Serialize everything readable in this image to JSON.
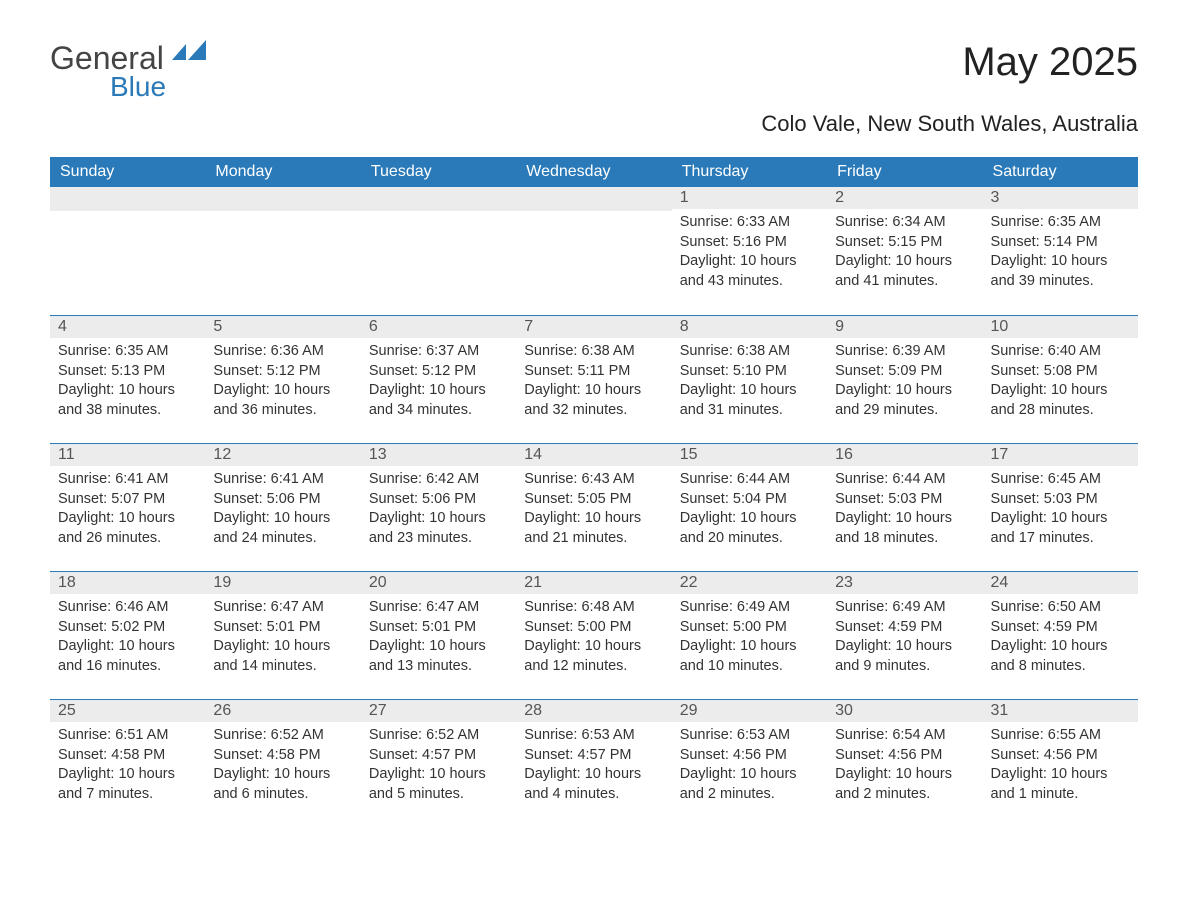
{
  "brand": {
    "text1": "General",
    "text2": "Blue",
    "shape_color": "#2a7ab9"
  },
  "title": "May 2025",
  "location": "Colo Vale, New South Wales, Australia",
  "colors": {
    "header_bg": "#2a7ab9",
    "header_text": "#ffffff",
    "daynum_bg": "#ececec",
    "daynum_border": "#2a7ab9",
    "body_text": "#333333"
  },
  "weekdays": [
    "Sunday",
    "Monday",
    "Tuesday",
    "Wednesday",
    "Thursday",
    "Friday",
    "Saturday"
  ],
  "weeks": [
    [
      null,
      null,
      null,
      null,
      {
        "num": "1",
        "sunrise": "Sunrise: 6:33 AM",
        "sunset": "Sunset: 5:16 PM",
        "daylight": "Daylight: 10 hours and 43 minutes."
      },
      {
        "num": "2",
        "sunrise": "Sunrise: 6:34 AM",
        "sunset": "Sunset: 5:15 PM",
        "daylight": "Daylight: 10 hours and 41 minutes."
      },
      {
        "num": "3",
        "sunrise": "Sunrise: 6:35 AM",
        "sunset": "Sunset: 5:14 PM",
        "daylight": "Daylight: 10 hours and 39 minutes."
      }
    ],
    [
      {
        "num": "4",
        "sunrise": "Sunrise: 6:35 AM",
        "sunset": "Sunset: 5:13 PM",
        "daylight": "Daylight: 10 hours and 38 minutes."
      },
      {
        "num": "5",
        "sunrise": "Sunrise: 6:36 AM",
        "sunset": "Sunset: 5:12 PM",
        "daylight": "Daylight: 10 hours and 36 minutes."
      },
      {
        "num": "6",
        "sunrise": "Sunrise: 6:37 AM",
        "sunset": "Sunset: 5:12 PM",
        "daylight": "Daylight: 10 hours and 34 minutes."
      },
      {
        "num": "7",
        "sunrise": "Sunrise: 6:38 AM",
        "sunset": "Sunset: 5:11 PM",
        "daylight": "Daylight: 10 hours and 32 minutes."
      },
      {
        "num": "8",
        "sunrise": "Sunrise: 6:38 AM",
        "sunset": "Sunset: 5:10 PM",
        "daylight": "Daylight: 10 hours and 31 minutes."
      },
      {
        "num": "9",
        "sunrise": "Sunrise: 6:39 AM",
        "sunset": "Sunset: 5:09 PM",
        "daylight": "Daylight: 10 hours and 29 minutes."
      },
      {
        "num": "10",
        "sunrise": "Sunrise: 6:40 AM",
        "sunset": "Sunset: 5:08 PM",
        "daylight": "Daylight: 10 hours and 28 minutes."
      }
    ],
    [
      {
        "num": "11",
        "sunrise": "Sunrise: 6:41 AM",
        "sunset": "Sunset: 5:07 PM",
        "daylight": "Daylight: 10 hours and 26 minutes."
      },
      {
        "num": "12",
        "sunrise": "Sunrise: 6:41 AM",
        "sunset": "Sunset: 5:06 PM",
        "daylight": "Daylight: 10 hours and 24 minutes."
      },
      {
        "num": "13",
        "sunrise": "Sunrise: 6:42 AM",
        "sunset": "Sunset: 5:06 PM",
        "daylight": "Daylight: 10 hours and 23 minutes."
      },
      {
        "num": "14",
        "sunrise": "Sunrise: 6:43 AM",
        "sunset": "Sunset: 5:05 PM",
        "daylight": "Daylight: 10 hours and 21 minutes."
      },
      {
        "num": "15",
        "sunrise": "Sunrise: 6:44 AM",
        "sunset": "Sunset: 5:04 PM",
        "daylight": "Daylight: 10 hours and 20 minutes."
      },
      {
        "num": "16",
        "sunrise": "Sunrise: 6:44 AM",
        "sunset": "Sunset: 5:03 PM",
        "daylight": "Daylight: 10 hours and 18 minutes."
      },
      {
        "num": "17",
        "sunrise": "Sunrise: 6:45 AM",
        "sunset": "Sunset: 5:03 PM",
        "daylight": "Daylight: 10 hours and 17 minutes."
      }
    ],
    [
      {
        "num": "18",
        "sunrise": "Sunrise: 6:46 AM",
        "sunset": "Sunset: 5:02 PM",
        "daylight": "Daylight: 10 hours and 16 minutes."
      },
      {
        "num": "19",
        "sunrise": "Sunrise: 6:47 AM",
        "sunset": "Sunset: 5:01 PM",
        "daylight": "Daylight: 10 hours and 14 minutes."
      },
      {
        "num": "20",
        "sunrise": "Sunrise: 6:47 AM",
        "sunset": "Sunset: 5:01 PM",
        "daylight": "Daylight: 10 hours and 13 minutes."
      },
      {
        "num": "21",
        "sunrise": "Sunrise: 6:48 AM",
        "sunset": "Sunset: 5:00 PM",
        "daylight": "Daylight: 10 hours and 12 minutes."
      },
      {
        "num": "22",
        "sunrise": "Sunrise: 6:49 AM",
        "sunset": "Sunset: 5:00 PM",
        "daylight": "Daylight: 10 hours and 10 minutes."
      },
      {
        "num": "23",
        "sunrise": "Sunrise: 6:49 AM",
        "sunset": "Sunset: 4:59 PM",
        "daylight": "Daylight: 10 hours and 9 minutes."
      },
      {
        "num": "24",
        "sunrise": "Sunrise: 6:50 AM",
        "sunset": "Sunset: 4:59 PM",
        "daylight": "Daylight: 10 hours and 8 minutes."
      }
    ],
    [
      {
        "num": "25",
        "sunrise": "Sunrise: 6:51 AM",
        "sunset": "Sunset: 4:58 PM",
        "daylight": "Daylight: 10 hours and 7 minutes."
      },
      {
        "num": "26",
        "sunrise": "Sunrise: 6:52 AM",
        "sunset": "Sunset: 4:58 PM",
        "daylight": "Daylight: 10 hours and 6 minutes."
      },
      {
        "num": "27",
        "sunrise": "Sunrise: 6:52 AM",
        "sunset": "Sunset: 4:57 PM",
        "daylight": "Daylight: 10 hours and 5 minutes."
      },
      {
        "num": "28",
        "sunrise": "Sunrise: 6:53 AM",
        "sunset": "Sunset: 4:57 PM",
        "daylight": "Daylight: 10 hours and 4 minutes."
      },
      {
        "num": "29",
        "sunrise": "Sunrise: 6:53 AM",
        "sunset": "Sunset: 4:56 PM",
        "daylight": "Daylight: 10 hours and 2 minutes."
      },
      {
        "num": "30",
        "sunrise": "Sunrise: 6:54 AM",
        "sunset": "Sunset: 4:56 PM",
        "daylight": "Daylight: 10 hours and 2 minutes."
      },
      {
        "num": "31",
        "sunrise": "Sunrise: 6:55 AM",
        "sunset": "Sunset: 4:56 PM",
        "daylight": "Daylight: 10 hours and 1 minute."
      }
    ]
  ]
}
